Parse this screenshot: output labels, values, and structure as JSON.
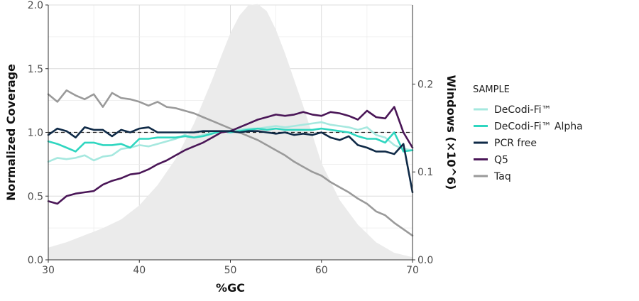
{
  "chart_data": {
    "type": "line",
    "xlabel": "%GC",
    "ylabel": "Normalized Coverage",
    "y2label": "Windows (×10^6)",
    "xlim": [
      30,
      70
    ],
    "ylim": [
      0,
      2.0
    ],
    "y2lim": [
      0,
      0.29
    ],
    "x_ticks": [
      30,
      40,
      50,
      60,
      70
    ],
    "y_ticks": [
      0.0,
      0.5,
      1.0,
      1.5,
      2.0
    ],
    "y2_ticks": [
      0.0,
      0.1,
      0.2
    ],
    "x_tick_labels": [
      "30",
      "40",
      "50",
      "60",
      "70"
    ],
    "y_tick_labels": [
      "0.0",
      "0.5",
      "1.0",
      "1.5",
      "2.0"
    ],
    "y2_tick_labels": [
      "0.0",
      "0.1",
      "0.2"
    ],
    "reference_line": 1.0,
    "grid": true,
    "legend": {
      "title": "SAMPLE",
      "position": "right"
    },
    "x": [
      30,
      31,
      32,
      33,
      34,
      35,
      36,
      37,
      38,
      39,
      40,
      41,
      42,
      43,
      44,
      45,
      46,
      47,
      48,
      49,
      50,
      51,
      52,
      53,
      54,
      55,
      56,
      57,
      58,
      59,
      60,
      61,
      62,
      63,
      64,
      65,
      66,
      67,
      68,
      69,
      70
    ],
    "series": [
      {
        "name": "DeCodi-Fi™",
        "color": "#a6e8df",
        "values": [
          0.77,
          0.8,
          0.79,
          0.8,
          0.82,
          0.78,
          0.81,
          0.82,
          0.87,
          0.88,
          0.9,
          0.89,
          0.91,
          0.93,
          0.95,
          0.98,
          0.96,
          0.98,
          1.0,
          1.01,
          1.01,
          1.02,
          1.03,
          1.03,
          1.04,
          1.05,
          1.04,
          1.05,
          1.06,
          1.07,
          1.08,
          1.06,
          1.05,
          1.04,
          1.02,
          1.04,
          0.98,
          0.96,
          0.9,
          0.87,
          0.86
        ]
      },
      {
        "name": "DeCodi-Fi™ Alpha",
        "color": "#2fd6c0",
        "values": [
          0.93,
          0.91,
          0.88,
          0.85,
          0.92,
          0.92,
          0.9,
          0.9,
          0.91,
          0.88,
          0.95,
          0.95,
          0.96,
          0.96,
          0.96,
          0.97,
          0.96,
          0.97,
          0.99,
          1.01,
          1.0,
          1.01,
          1.02,
          1.03,
          1.02,
          1.03,
          1.02,
          1.02,
          1.02,
          1.02,
          1.03,
          1.02,
          1.01,
          1.0,
          0.97,
          0.95,
          0.95,
          0.92,
          1.0,
          0.85,
          0.86
        ]
      },
      {
        "name": "PCR free",
        "color": "#0f2a47",
        "values": [
          0.98,
          1.03,
          1.01,
          0.96,
          1.04,
          1.02,
          1.02,
          0.97,
          1.02,
          1.0,
          1.03,
          1.04,
          1.0,
          1.0,
          1.0,
          1.0,
          1.0,
          1.01,
          1.01,
          1.01,
          1.01,
          1.0,
          1.01,
          1.01,
          1.0,
          0.99,
          1.0,
          0.98,
          0.99,
          0.98,
          1.0,
          0.96,
          0.94,
          0.97,
          0.9,
          0.88,
          0.85,
          0.85,
          0.83,
          0.91,
          0.53
        ]
      },
      {
        "name": "Q5",
        "color": "#4a1657",
        "values": [
          0.46,
          0.44,
          0.5,
          0.52,
          0.53,
          0.54,
          0.59,
          0.62,
          0.64,
          0.67,
          0.68,
          0.71,
          0.75,
          0.78,
          0.82,
          0.86,
          0.89,
          0.92,
          0.96,
          1.0,
          1.01,
          1.04,
          1.07,
          1.1,
          1.12,
          1.14,
          1.13,
          1.14,
          1.16,
          1.14,
          1.13,
          1.16,
          1.15,
          1.13,
          1.1,
          1.17,
          1.12,
          1.11,
          1.2,
          1.0,
          0.88
        ]
      },
      {
        "name": "Taq",
        "color": "#9a9a9a",
        "values": [
          1.3,
          1.24,
          1.33,
          1.29,
          1.26,
          1.3,
          1.2,
          1.31,
          1.27,
          1.26,
          1.24,
          1.21,
          1.24,
          1.2,
          1.19,
          1.17,
          1.15,
          1.12,
          1.09,
          1.06,
          1.03,
          1.0,
          0.97,
          0.94,
          0.9,
          0.86,
          0.82,
          0.77,
          0.73,
          0.69,
          0.66,
          0.61,
          0.57,
          0.53,
          0.48,
          0.44,
          0.38,
          0.35,
          0.29,
          0.24,
          0.19
        ]
      }
    ],
    "background_distribution": {
      "label": "Windows",
      "axis": "y2",
      "color": "#ebebeb",
      "x": [
        30,
        32,
        34,
        36,
        38,
        40,
        42,
        44,
        46,
        48,
        49,
        50,
        51,
        52,
        53,
        54,
        55,
        56,
        58,
        60,
        62,
        64,
        66,
        68,
        70
      ],
      "values": [
        0.014,
        0.02,
        0.028,
        0.036,
        0.046,
        0.062,
        0.085,
        0.115,
        0.155,
        0.205,
        0.232,
        0.258,
        0.278,
        0.29,
        0.291,
        0.283,
        0.262,
        0.235,
        0.175,
        0.11,
        0.068,
        0.04,
        0.02,
        0.008,
        0.003
      ]
    }
  }
}
